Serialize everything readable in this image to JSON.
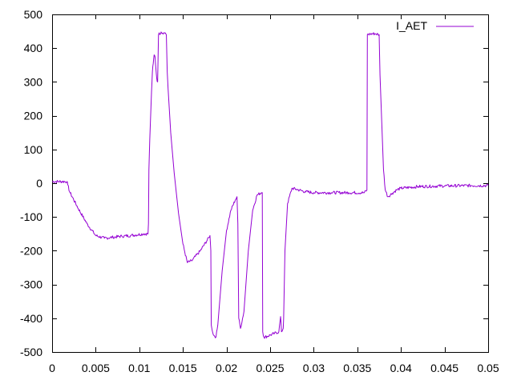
{
  "chart_data": {
    "type": "line",
    "title": "",
    "xlabel": "",
    "ylabel": "",
    "xlim": [
      0,
      0.05
    ],
    "ylim": [
      -500,
      500
    ],
    "grid": false,
    "legend_position": "top-right",
    "x_ticks": [
      {
        "value": 0,
        "label": "0"
      },
      {
        "value": 0.005,
        "label": "0.005"
      },
      {
        "value": 0.01,
        "label": "0.01"
      },
      {
        "value": 0.015,
        "label": "0.015"
      },
      {
        "value": 0.02,
        "label": "0.02"
      },
      {
        "value": 0.025,
        "label": "0.025"
      },
      {
        "value": 0.03,
        "label": "0.03"
      },
      {
        "value": 0.035,
        "label": "0.035"
      },
      {
        "value": 0.04,
        "label": "0.04"
      },
      {
        "value": 0.045,
        "label": "0.045"
      },
      {
        "value": 0.05,
        "label": "0.05"
      }
    ],
    "y_ticks": [
      {
        "value": 500,
        "label": "500"
      },
      {
        "value": 400,
        "label": "400"
      },
      {
        "value": 300,
        "label": "300"
      },
      {
        "value": 200,
        "label": "200"
      },
      {
        "value": 100,
        "label": "100"
      },
      {
        "value": 0,
        "label": "0"
      },
      {
        "value": -100,
        "label": "-100"
      },
      {
        "value": -200,
        "label": "-200"
      },
      {
        "value": -300,
        "label": "-300"
      },
      {
        "value": -400,
        "label": "-400"
      },
      {
        "value": -500,
        "label": "-500"
      }
    ],
    "series": [
      {
        "name": "I_AET",
        "color": "#9400d3",
        "points": [
          [
            0,
            5
          ],
          [
            0.0017,
            5
          ],
          [
            0.0018,
            -5
          ],
          [
            0.002,
            -25
          ],
          [
            0.003,
            -75
          ],
          [
            0.004,
            -120
          ],
          [
            0.005,
            -155
          ],
          [
            0.006,
            -163
          ],
          [
            0.007,
            -160
          ],
          [
            0.008,
            -157
          ],
          [
            0.009,
            -155
          ],
          [
            0.0105,
            -150
          ],
          [
            0.011,
            -150
          ],
          [
            0.01105,
            -120
          ],
          [
            0.0111,
            40
          ],
          [
            0.0112,
            130
          ],
          [
            0.0114,
            270
          ],
          [
            0.0115,
            330
          ],
          [
            0.0116,
            355
          ],
          [
            0.0117,
            380
          ],
          [
            0.0118,
            375
          ],
          [
            0.0119,
            340
          ],
          [
            0.012,
            310
          ],
          [
            0.0121,
            300
          ],
          [
            0.0122,
            440
          ],
          [
            0.0125,
            448
          ],
          [
            0.0128,
            445
          ],
          [
            0.013,
            445
          ],
          [
            0.0131,
            440
          ],
          [
            0.0132,
            330
          ],
          [
            0.0133,
            280
          ],
          [
            0.0136,
            150
          ],
          [
            0.014,
            30
          ],
          [
            0.0145,
            -90
          ],
          [
            0.015,
            -180
          ],
          [
            0.0155,
            -235
          ],
          [
            0.016,
            -230
          ],
          [
            0.017,
            -200
          ],
          [
            0.018,
            -160
          ],
          [
            0.0181,
            -155
          ],
          [
            0.0182,
            -200
          ],
          [
            0.01825,
            -420
          ],
          [
            0.0185,
            -450
          ],
          [
            0.0188,
            -455
          ],
          [
            0.019,
            -420
          ],
          [
            0.0195,
            -260
          ],
          [
            0.02,
            -140
          ],
          [
            0.0205,
            -80
          ],
          [
            0.021,
            -50
          ],
          [
            0.0212,
            -40
          ],
          [
            0.0213,
            -120
          ],
          [
            0.0214,
            -400
          ],
          [
            0.0216,
            -430
          ],
          [
            0.022,
            -380
          ],
          [
            0.0225,
            -200
          ],
          [
            0.023,
            -80
          ],
          [
            0.0235,
            -35
          ],
          [
            0.024,
            -28
          ],
          [
            0.0241,
            -28
          ],
          [
            0.02415,
            -440
          ],
          [
            0.0243,
            -457
          ],
          [
            0.025,
            -450
          ],
          [
            0.0255,
            -445
          ],
          [
            0.026,
            -440
          ],
          [
            0.0262,
            -395
          ],
          [
            0.0263,
            -440
          ],
          [
            0.0265,
            -430
          ],
          [
            0.02655,
            -400
          ],
          [
            0.0267,
            -200
          ],
          [
            0.027,
            -60
          ],
          [
            0.0275,
            -15
          ],
          [
            0.028,
            -18
          ],
          [
            0.029,
            -25
          ],
          [
            0.03,
            -28
          ],
          [
            0.032,
            -28
          ],
          [
            0.034,
            -28
          ],
          [
            0.0358,
            -28
          ],
          [
            0.0361,
            -20
          ],
          [
            0.03615,
            440
          ],
          [
            0.0365,
            442
          ],
          [
            0.037,
            443
          ],
          [
            0.0375,
            440
          ],
          [
            0.0376,
            320
          ],
          [
            0.0378,
            180
          ],
          [
            0.038,
            40
          ],
          [
            0.0382,
            -20
          ],
          [
            0.0385,
            -40
          ],
          [
            0.039,
            -30
          ],
          [
            0.0395,
            -20
          ],
          [
            0.04,
            -15
          ],
          [
            0.042,
            -10
          ],
          [
            0.045,
            -8
          ],
          [
            0.048,
            -7
          ],
          [
            0.05,
            -7
          ]
        ]
      }
    ]
  }
}
